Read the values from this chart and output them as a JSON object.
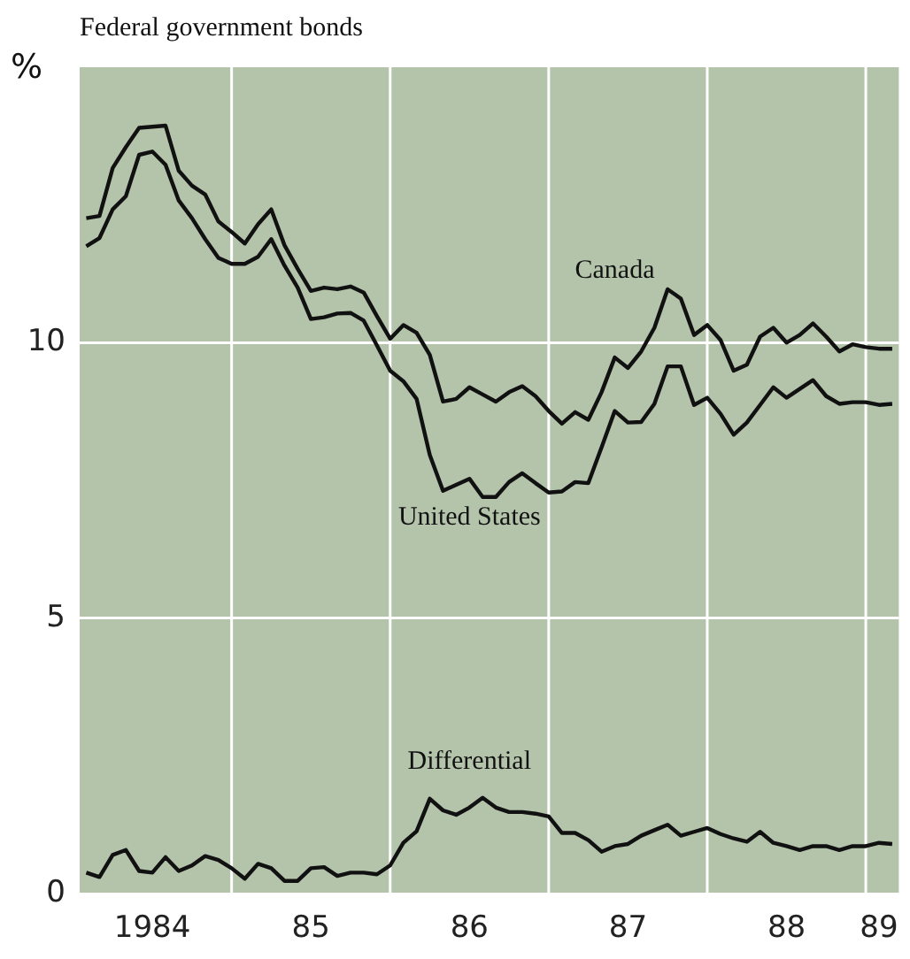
{
  "chart_data": {
    "type": "line",
    "title": "Federal government bonds",
    "ylabel": "%",
    "categories": [
      null,
      null,
      null,
      null,
      null,
      "1984",
      null,
      null,
      null,
      null,
      null,
      null,
      null,
      null,
      null,
      null,
      null,
      "85",
      null,
      null,
      null,
      null,
      null,
      null,
      null,
      null,
      null,
      null,
      null,
      "86",
      null,
      null,
      null,
      null,
      null,
      null,
      null,
      null,
      null,
      null,
      null,
      "87",
      null,
      null,
      null,
      null,
      null,
      null,
      null,
      null,
      null,
      null,
      null,
      "88",
      null,
      null,
      null,
      null,
      null,
      null,
      "89",
      null
    ],
    "series": [
      {
        "name": "Canada",
        "color": "#111111",
        "values": [
          12.26,
          12.3,
          13.17,
          13.55,
          13.9,
          13.92,
          13.94,
          13.12,
          12.85,
          12.69,
          12.2,
          12.01,
          11.8,
          12.15,
          12.42,
          11.77,
          11.34,
          10.94,
          11.0,
          10.97,
          11.02,
          10.91,
          10.48,
          10.07,
          10.32,
          10.18,
          9.78,
          8.93,
          8.98,
          9.19,
          9.06,
          8.93,
          9.1,
          9.21,
          9.03,
          8.76,
          8.53,
          8.74,
          8.6,
          9.1,
          9.73,
          9.54,
          9.84,
          10.27,
          10.97,
          10.8,
          10.14,
          10.32,
          10.05,
          9.49,
          9.6,
          10.11,
          10.27,
          10.0,
          10.14,
          10.35,
          10.11,
          9.84,
          9.97,
          9.92,
          9.89,
          9.89
        ]
      },
      {
        "name": "United States",
        "color": "#111111",
        "values": [
          11.75,
          11.9,
          12.42,
          12.66,
          13.41,
          13.47,
          13.23,
          12.58,
          12.26,
          11.88,
          11.54,
          11.43,
          11.43,
          11.56,
          11.88,
          11.4,
          11.0,
          10.43,
          10.46,
          10.53,
          10.54,
          10.4,
          9.95,
          9.49,
          9.3,
          8.98,
          7.96,
          7.31,
          7.42,
          7.53,
          7.2,
          7.2,
          7.47,
          7.63,
          7.45,
          7.28,
          7.3,
          7.47,
          7.45,
          8.1,
          8.76,
          8.55,
          8.56,
          8.89,
          9.57,
          9.57,
          8.87,
          9.0,
          8.71,
          8.33,
          8.55,
          8.87,
          9.19,
          9.0,
          9.16,
          9.32,
          9.03,
          8.89,
          8.92,
          8.92,
          8.87,
          8.89
        ]
      },
      {
        "name": "Differential",
        "color": "#111111",
        "values": [
          0.38,
          0.3,
          0.7,
          0.79,
          0.41,
          0.38,
          0.66,
          0.41,
          0.51,
          0.68,
          0.61,
          0.46,
          0.27,
          0.54,
          0.46,
          0.23,
          0.23,
          0.46,
          0.48,
          0.32,
          0.38,
          0.38,
          0.35,
          0.51,
          0.92,
          1.13,
          1.72,
          1.51,
          1.43,
          1.56,
          1.74,
          1.56,
          1.48,
          1.48,
          1.45,
          1.4,
          1.1,
          1.1,
          0.97,
          0.76,
          0.86,
          0.9,
          1.05,
          1.15,
          1.25,
          1.05,
          1.12,
          1.19,
          1.08,
          1.0,
          0.94,
          1.12,
          0.92,
          0.86,
          0.79,
          0.86,
          0.86,
          0.79,
          0.86,
          0.86,
          0.92,
          0.9
        ]
      }
    ],
    "ylim": [
      0,
      15
    ],
    "yticks": [
      0,
      5,
      10
    ],
    "grid": true,
    "legend": false,
    "marker": "none",
    "line_style": "solid"
  }
}
